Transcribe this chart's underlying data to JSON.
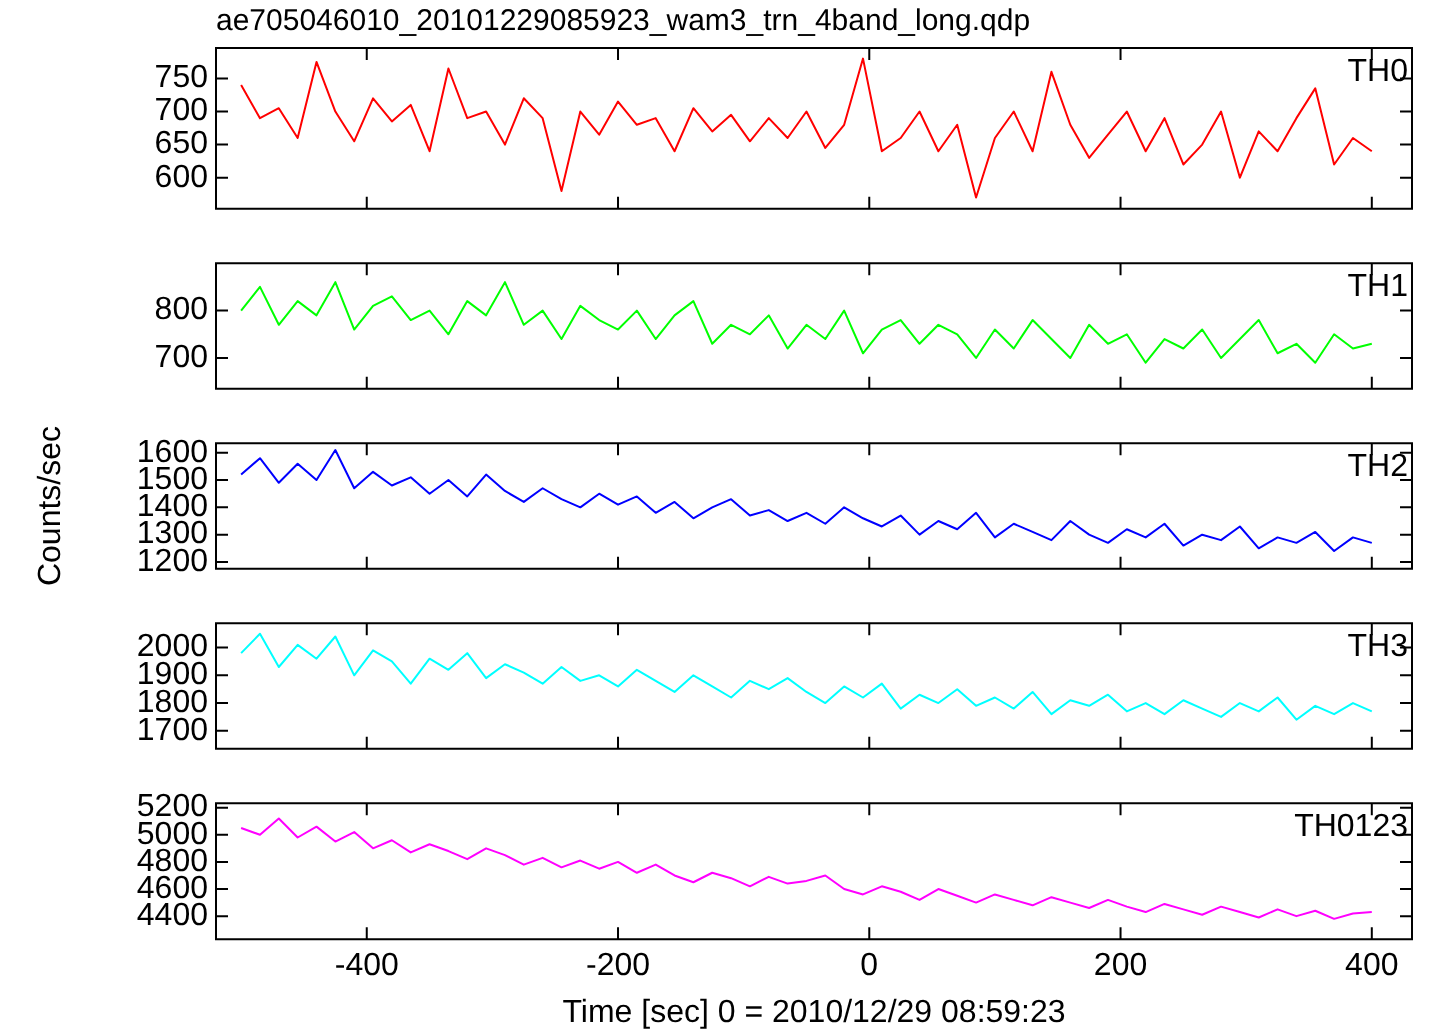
{
  "chart_data": [
    {
      "type": "line",
      "title": "ae705046010_20101229085923_wam3_trn_4band_long.qdp",
      "tick_labels": "y",
      "x": [
        -500,
        -485,
        -470,
        -455,
        -440,
        -425,
        -410,
        -395,
        -380,
        -365,
        -350,
        -335,
        -320,
        -305,
        -290,
        -275,
        -260,
        -245,
        -230,
        -215,
        -200,
        -185,
        -170,
        -155,
        -140,
        -125,
        -110,
        -95,
        -80,
        -65,
        -50,
        -35,
        -20,
        -5,
        10,
        25,
        40,
        55,
        70,
        85,
        100,
        115,
        130,
        145,
        160,
        175,
        190,
        205,
        220,
        235,
        250,
        265,
        280,
        295,
        310,
        325,
        340,
        355,
        370,
        385,
        400
      ],
      "xlim": [
        -520,
        432
      ],
      "xticks": [
        -400,
        -200,
        0,
        200,
        400
      ],
      "ylim": [
        553,
        796
      ],
      "yticks": [
        600,
        650,
        700,
        750
      ],
      "series": [
        {
          "name": "TH0",
          "color": "#ff0000",
          "values": [
            740,
            690,
            705,
            660,
            775,
            700,
            655,
            720,
            685,
            710,
            640,
            765,
            690,
            700,
            650,
            720,
            690,
            580,
            700,
            665,
            715,
            680,
            690,
            640,
            705,
            670,
            695,
            655,
            690,
            660,
            700,
            645,
            680,
            780,
            640,
            660,
            700,
            640,
            680,
            570,
            660,
            700,
            640,
            760,
            680,
            630,
            665,
            700,
            640,
            690,
            620,
            650,
            700,
            600,
            670,
            640,
            690,
            735,
            620,
            660,
            640
          ]
        }
      ]
    },
    {
      "type": "line",
      "tick_labels": "y",
      "x": [
        -500,
        -485,
        -470,
        -455,
        -440,
        -425,
        -410,
        -395,
        -380,
        -365,
        -350,
        -335,
        -320,
        -305,
        -290,
        -275,
        -260,
        -245,
        -230,
        -215,
        -200,
        -185,
        -170,
        -155,
        -140,
        -125,
        -110,
        -95,
        -80,
        -65,
        -50,
        -35,
        -20,
        -5,
        10,
        25,
        40,
        55,
        70,
        85,
        100,
        115,
        130,
        145,
        160,
        175,
        190,
        205,
        220,
        235,
        250,
        265,
        280,
        295,
        310,
        325,
        340,
        355,
        370,
        385,
        400
      ],
      "xlim": [
        -520,
        432
      ],
      "xticks": [
        -400,
        -200,
        0,
        200,
        400
      ],
      "ylim": [
        635,
        900
      ],
      "yticks": [
        700,
        800
      ],
      "series": [
        {
          "name": "TH1",
          "color": "#00ff00",
          "values": [
            800,
            850,
            770,
            820,
            790,
            860,
            760,
            810,
            830,
            780,
            800,
            750,
            820,
            790,
            860,
            770,
            800,
            740,
            810,
            780,
            760,
            800,
            740,
            790,
            820,
            730,
            770,
            750,
            790,
            720,
            770,
            740,
            800,
            710,
            760,
            780,
            730,
            770,
            750,
            700,
            760,
            720,
            780,
            740,
            700,
            770,
            730,
            750,
            690,
            740,
            720,
            760,
            700,
            740,
            780,
            710,
            730,
            690,
            750,
            720,
            730
          ]
        }
      ]
    },
    {
      "type": "line",
      "ylabel": "Counts/sec",
      "tick_labels": "y",
      "x": [
        -500,
        -485,
        -470,
        -455,
        -440,
        -425,
        -410,
        -395,
        -380,
        -365,
        -350,
        -335,
        -320,
        -305,
        -290,
        -275,
        -260,
        -245,
        -230,
        -215,
        -200,
        -185,
        -170,
        -155,
        -140,
        -125,
        -110,
        -95,
        -80,
        -65,
        -50,
        -35,
        -20,
        -5,
        10,
        25,
        40,
        55,
        70,
        85,
        100,
        115,
        130,
        145,
        160,
        175,
        190,
        205,
        220,
        235,
        250,
        265,
        280,
        295,
        310,
        325,
        340,
        355,
        370,
        385,
        400
      ],
      "xlim": [
        -520,
        432
      ],
      "xticks": [
        -400,
        -200,
        0,
        200,
        400
      ],
      "ylim": [
        1175,
        1635
      ],
      "yticks": [
        1200,
        1300,
        1400,
        1500,
        1600
      ],
      "series": [
        {
          "name": "TH2",
          "color": "#0000ff",
          "values": [
            1520,
            1580,
            1490,
            1560,
            1500,
            1610,
            1470,
            1530,
            1480,
            1510,
            1450,
            1500,
            1440,
            1520,
            1460,
            1420,
            1470,
            1430,
            1400,
            1450,
            1410,
            1440,
            1380,
            1420,
            1360,
            1400,
            1430,
            1370,
            1390,
            1350,
            1380,
            1340,
            1400,
            1360,
            1330,
            1370,
            1300,
            1350,
            1320,
            1380,
            1290,
            1340,
            1310,
            1280,
            1350,
            1300,
            1270,
            1320,
            1290,
            1340,
            1260,
            1300,
            1280,
            1330,
            1250,
            1290,
            1270,
            1310,
            1240,
            1290,
            1270
          ]
        }
      ]
    },
    {
      "type": "line",
      "tick_labels": "y",
      "x": [
        -500,
        -485,
        -470,
        -455,
        -440,
        -425,
        -410,
        -395,
        -380,
        -365,
        -350,
        -335,
        -320,
        -305,
        -290,
        -275,
        -260,
        -245,
        -230,
        -215,
        -200,
        -185,
        -170,
        -155,
        -140,
        -125,
        -110,
        -95,
        -80,
        -65,
        -50,
        -35,
        -20,
        -5,
        10,
        25,
        40,
        55,
        70,
        85,
        100,
        115,
        130,
        145,
        160,
        175,
        190,
        205,
        220,
        235,
        250,
        265,
        280,
        295,
        310,
        325,
        340,
        355,
        370,
        385,
        400
      ],
      "xlim": [
        -520,
        432
      ],
      "xticks": [
        -400,
        -200,
        0,
        200,
        400
      ],
      "ylim": [
        1635,
        2088
      ],
      "yticks": [
        1700,
        1800,
        1900,
        2000
      ],
      "series": [
        {
          "name": "TH3",
          "color": "#00ffff",
          "values": [
            1980,
            2050,
            1930,
            2010,
            1960,
            2040,
            1900,
            1990,
            1950,
            1870,
            1960,
            1920,
            1980,
            1890,
            1940,
            1910,
            1870,
            1930,
            1880,
            1900,
            1860,
            1920,
            1880,
            1840,
            1900,
            1860,
            1820,
            1880,
            1850,
            1890,
            1840,
            1800,
            1860,
            1820,
            1870,
            1780,
            1830,
            1800,
            1850,
            1790,
            1820,
            1780,
            1840,
            1760,
            1810,
            1790,
            1830,
            1770,
            1800,
            1760,
            1810,
            1780,
            1750,
            1800,
            1770,
            1820,
            1740,
            1790,
            1760,
            1800,
            1770
          ]
        }
      ]
    },
    {
      "type": "line",
      "xlabel": "Time [sec] 0 = 2010/12/29 08:59:23",
      "x": [
        -500,
        -485,
        -470,
        -455,
        -440,
        -425,
        -410,
        -395,
        -380,
        -365,
        -350,
        -335,
        -320,
        -305,
        -290,
        -275,
        -260,
        -245,
        -230,
        -215,
        -200,
        -185,
        -170,
        -155,
        -140,
        -125,
        -110,
        -95,
        -80,
        -65,
        -50,
        -35,
        -20,
        -5,
        10,
        25,
        40,
        55,
        70,
        85,
        100,
        115,
        130,
        145,
        160,
        175,
        190,
        205,
        220,
        235,
        250,
        265,
        280,
        295,
        310,
        325,
        340,
        355,
        370,
        385,
        400
      ],
      "xlim": [
        -520,
        432
      ],
      "xticks": [
        -400,
        -200,
        0,
        200,
        400
      ],
      "ylim": [
        4230,
        5233
      ],
      "yticks": [
        4400,
        4600,
        4800,
        5000,
        5200
      ],
      "series": [
        {
          "name": "TH0123",
          "color": "#ff00ff",
          "values": [
            5050,
            5000,
            5120,
            4980,
            5060,
            4950,
            5020,
            4900,
            4960,
            4870,
            4930,
            4880,
            4820,
            4900,
            4850,
            4780,
            4830,
            4760,
            4810,
            4750,
            4800,
            4720,
            4780,
            4700,
            4650,
            4720,
            4680,
            4620,
            4690,
            4640,
            4660,
            4700,
            4600,
            4560,
            4620,
            4580,
            4520,
            4600,
            4550,
            4500,
            4560,
            4520,
            4480,
            4540,
            4500,
            4460,
            4520,
            4470,
            4430,
            4490,
            4450,
            4410,
            4470,
            4430,
            4390,
            4450,
            4400,
            4440,
            4380,
            4420,
            4430
          ]
        }
      ]
    }
  ]
}
